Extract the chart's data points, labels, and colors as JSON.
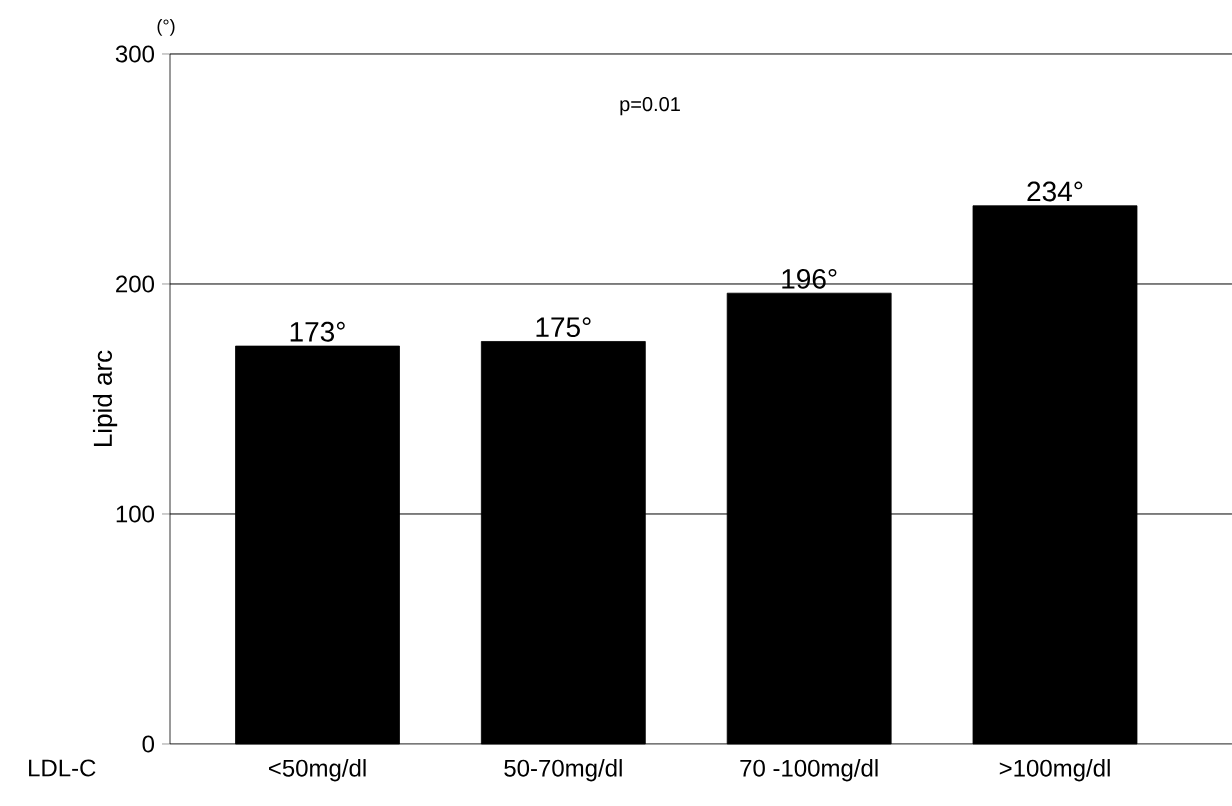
{
  "chart_data": {
    "type": "bar",
    "categories": [
      "<50mg/dl",
      "50-70mg/dl",
      "70 -100mg/dl",
      ">100mg/dl"
    ],
    "values": [
      173,
      175,
      196,
      234
    ],
    "value_labels": [
      "173°",
      "175°",
      "196°",
      "234°"
    ],
    "color": "#000000",
    "xlabel": "LDL-C",
    "ylabel": "Lipid arc",
    "annotations": [
      "(°)",
      "p=0.01"
    ],
    "ylim": [
      0,
      300
    ],
    "yticks": [
      0,
      100,
      200,
      300
    ],
    "grid": "y"
  }
}
